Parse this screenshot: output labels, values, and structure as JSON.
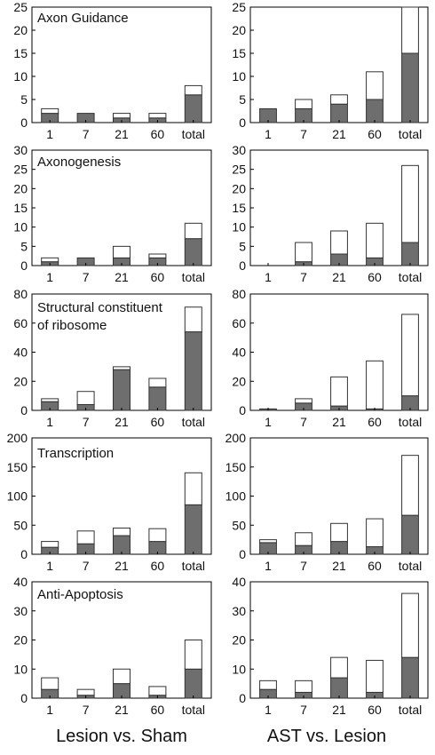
{
  "figure": {
    "column_titles": [
      "Lesion vs. Sham",
      "AST vs. Lesion"
    ],
    "colors": {
      "filled": "#6e6e6e",
      "open": "#ffffff",
      "outline": "#333333"
    }
  },
  "chart_data": [
    {
      "type": "bar",
      "stacked": true,
      "title": "Axon Guidance",
      "column": "Lesion vs. Sham",
      "categories": [
        "1",
        "7",
        "21",
        "60",
        "total"
      ],
      "series": [
        {
          "values": [
            2,
            2,
            1,
            1,
            6
          ]
        },
        {
          "values": [
            1,
            0,
            1,
            1,
            2
          ]
        }
      ],
      "ylim": [
        0,
        25
      ],
      "yticks": [
        0,
        5,
        10,
        15,
        20,
        25
      ]
    },
    {
      "type": "bar",
      "stacked": true,
      "title": "",
      "column": "AST vs. Lesion",
      "categories": [
        "1",
        "7",
        "21",
        "60",
        "total"
      ],
      "series": [
        {
          "values": [
            3,
            3,
            4,
            5,
            15
          ]
        },
        {
          "values": [
            0,
            2,
            2,
            6,
            10
          ]
        }
      ],
      "ylim": [
        0,
        25
      ],
      "yticks": [
        0,
        5,
        10,
        15,
        20,
        25
      ]
    },
    {
      "type": "bar",
      "stacked": true,
      "title": "Axonogenesis",
      "column": "Lesion vs. Sham",
      "categories": [
        "1",
        "7",
        "21",
        "60",
        "total"
      ],
      "series": [
        {
          "values": [
            1,
            2,
            2,
            2,
            7
          ]
        },
        {
          "values": [
            1,
            0,
            3,
            1,
            4
          ]
        }
      ],
      "ylim": [
        0,
        30
      ],
      "yticks": [
        0,
        5,
        10,
        15,
        20,
        25,
        30
      ]
    },
    {
      "type": "bar",
      "stacked": true,
      "title": "",
      "column": "AST vs. Lesion",
      "categories": [
        "1",
        "7",
        "21",
        "60",
        "total"
      ],
      "series": [
        {
          "values": [
            0,
            1,
            3,
            2,
            6
          ]
        },
        {
          "values": [
            0,
            5,
            6,
            9,
            20
          ]
        }
      ],
      "ylim": [
        0,
        30
      ],
      "yticks": [
        0,
        5,
        10,
        15,
        20,
        25,
        30
      ]
    },
    {
      "type": "bar",
      "stacked": true,
      "title": "Structural constituent of ribosome",
      "column": "Lesion vs. Sham",
      "categories": [
        "1",
        "7",
        "21",
        "60",
        "total"
      ],
      "series": [
        {
          "values": [
            6,
            4,
            28,
            16,
            54
          ]
        },
        {
          "values": [
            2,
            9,
            2,
            6,
            17
          ]
        }
      ],
      "ylim": [
        0,
        80
      ],
      "yticks": [
        0,
        20,
        40,
        60,
        80
      ]
    },
    {
      "type": "bar",
      "stacked": true,
      "title": "",
      "column": "AST vs. Lesion",
      "categories": [
        "1",
        "7",
        "21",
        "60",
        "total"
      ],
      "series": [
        {
          "values": [
            1,
            5,
            3,
            1,
            10
          ]
        },
        {
          "values": [
            0,
            3,
            20,
            33,
            56
          ]
        }
      ],
      "ylim": [
        0,
        80
      ],
      "yticks": [
        0,
        20,
        40,
        60,
        80
      ]
    },
    {
      "type": "bar",
      "stacked": true,
      "title": "Transcription",
      "column": "Lesion vs. Sham",
      "categories": [
        "1",
        "7",
        "21",
        "60",
        "total"
      ],
      "series": [
        {
          "values": [
            12,
            18,
            32,
            22,
            85
          ]
        },
        {
          "values": [
            10,
            22,
            13,
            22,
            55
          ]
        }
      ],
      "ylim": [
        0,
        200
      ],
      "yticks": [
        0,
        50,
        100,
        150,
        200
      ]
    },
    {
      "type": "bar",
      "stacked": true,
      "title": "",
      "column": "AST vs. Lesion",
      "categories": [
        "1",
        "7",
        "21",
        "60",
        "total"
      ],
      "series": [
        {
          "values": [
            20,
            15,
            22,
            13,
            67
          ]
        },
        {
          "values": [
            5,
            22,
            31,
            48,
            103
          ]
        }
      ],
      "ylim": [
        0,
        200
      ],
      "yticks": [
        0,
        50,
        100,
        150,
        200
      ]
    },
    {
      "type": "bar",
      "stacked": true,
      "title": "Anti-Apoptosis",
      "column": "Lesion vs. Sham",
      "categories": [
        "1",
        "7",
        "21",
        "60",
        "total"
      ],
      "series": [
        {
          "values": [
            3,
            1,
            5,
            1,
            10
          ]
        },
        {
          "values": [
            4,
            2,
            5,
            3,
            10
          ]
        }
      ],
      "ylim": [
        0,
        40
      ],
      "yticks": [
        0,
        10,
        20,
        30,
        40
      ]
    },
    {
      "type": "bar",
      "stacked": true,
      "title": "",
      "column": "AST vs. Lesion",
      "categories": [
        "1",
        "7",
        "21",
        "60",
        "total"
      ],
      "series": [
        {
          "values": [
            3,
            2,
            7,
            2,
            14
          ]
        },
        {
          "values": [
            3,
            4,
            7,
            11,
            22
          ]
        }
      ],
      "ylim": [
        0,
        40
      ],
      "yticks": [
        0,
        10,
        20,
        30,
        40
      ]
    }
  ]
}
